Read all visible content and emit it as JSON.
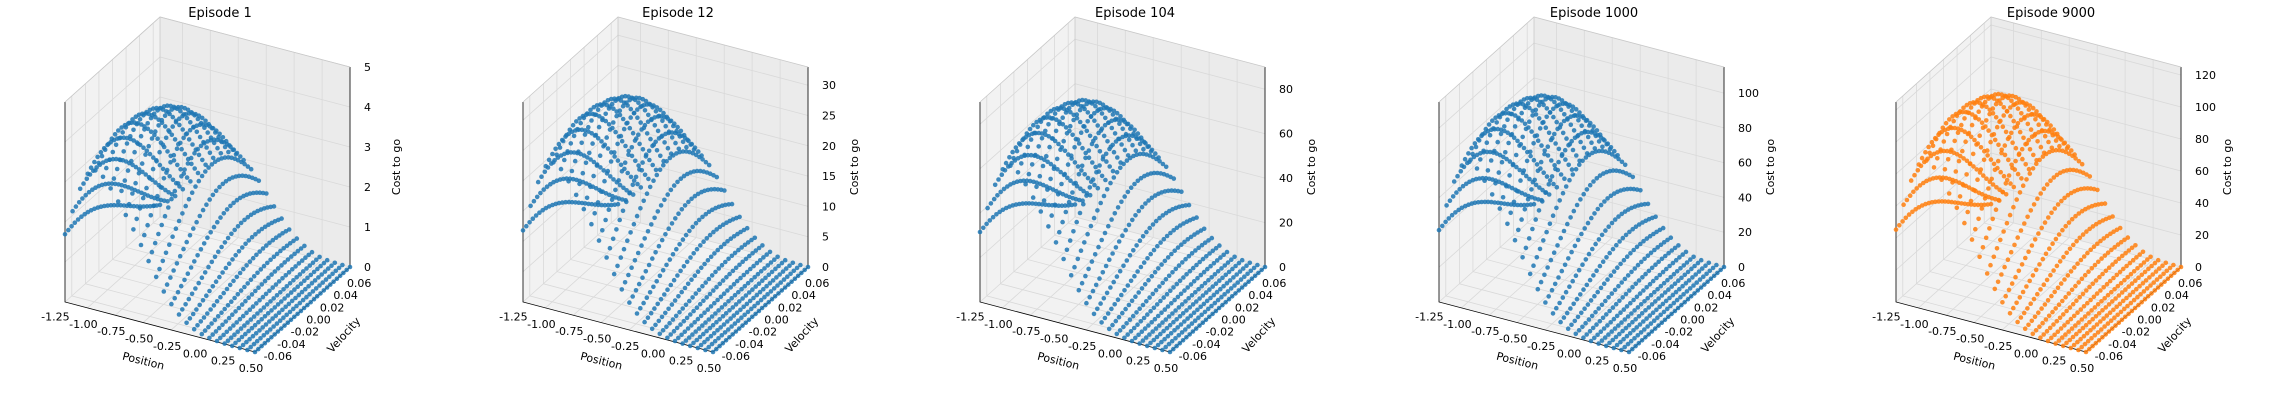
{
  "figure": {
    "background": "#ffffff",
    "pane_color": "#f2f2f2",
    "grid_color": "#d9d9d9",
    "axis_color": "#000000"
  },
  "chart_data": [
    {
      "type": "scatter3d",
      "title": "Episode 1",
      "xlabel": "Position",
      "ylabel": "Velocity",
      "zlabel": "Cost to go",
      "xlim": [
        -1.2,
        0.5
      ],
      "ylim": [
        -0.07,
        0.07
      ],
      "zlim": [
        0,
        5
      ],
      "xticks": [
        "-1.25",
        "-1.00",
        "-0.75",
        "-0.50",
        "-0.25",
        "0.00",
        "0.25",
        "0.50"
      ],
      "yticks": [
        "-0.06",
        "-0.04",
        "-0.02",
        "0.00",
        "0.02",
        "0.04",
        "0.06"
      ],
      "zticks": [
        "0",
        "1",
        "2",
        "3",
        "4",
        "5"
      ],
      "zmax_est": 4.3,
      "color": "#1f77b4",
      "grid": true
    },
    {
      "type": "scatter3d",
      "title": "Episode 12",
      "xlabel": "Position",
      "ylabel": "Velocity",
      "zlabel": "Cost to go",
      "xlim": [
        -1.2,
        0.5
      ],
      "ylim": [
        -0.07,
        0.07
      ],
      "zlim": [
        0,
        33
      ],
      "xticks": [
        "-1.25",
        "-1.00",
        "-0.75",
        "-0.50",
        "-0.25",
        "0.00",
        "0.25",
        "0.50"
      ],
      "yticks": [
        "-0.06",
        "-0.04",
        "-0.02",
        "0.00",
        "0.02",
        "0.04",
        "0.06"
      ],
      "zticks": [
        "0",
        "5",
        "10",
        "15",
        "20",
        "25",
        "30"
      ],
      "zmax_est": 30,
      "color": "#1f77b4",
      "grid": true
    },
    {
      "type": "scatter3d",
      "title": "Episode 104",
      "xlabel": "Position",
      "ylabel": "Velocity",
      "zlabel": "Cost to go",
      "xlim": [
        -1.2,
        0.5
      ],
      "ylim": [
        -0.07,
        0.07
      ],
      "zlim": [
        0,
        90
      ],
      "xticks": [
        "-1.25",
        "-1.00",
        "-0.75",
        "-0.50",
        "-0.25",
        "0.00",
        "0.25",
        "0.50"
      ],
      "yticks": [
        "-0.06",
        "-0.04",
        "-0.02",
        "0.00",
        "0.02",
        "0.04",
        "0.06"
      ],
      "zticks": [
        "0",
        "20",
        "40",
        "60",
        "80"
      ],
      "zmax_est": 80,
      "color": "#1f77b4",
      "grid": true
    },
    {
      "type": "scatter3d",
      "title": "Episode 1000",
      "xlabel": "Position",
      "ylabel": "Velocity",
      "zlabel": "Cost to go",
      "xlim": [
        -1.2,
        0.5
      ],
      "ylim": [
        -0.07,
        0.07
      ],
      "zlim": [
        0,
        115
      ],
      "xticks": [
        "-1.25",
        "-1.00",
        "-0.75",
        "-0.50",
        "-0.25",
        "0.00",
        "0.25",
        "0.50"
      ],
      "yticks": [
        "-0.06",
        "-0.04",
        "-0.02",
        "0.00",
        "0.02",
        "0.04",
        "0.06"
      ],
      "zticks": [
        "0",
        "20",
        "40",
        "60",
        "80",
        "100"
      ],
      "zmax_est": 105,
      "color": "#1f77b4",
      "grid": true
    },
    {
      "type": "scatter3d",
      "title": "Episode 9000",
      "xlabel": "Position",
      "ylabel": "Velocity",
      "zlabel": "Cost to go",
      "xlim": [
        -1.2,
        0.5
      ],
      "ylim": [
        -0.07,
        0.07
      ],
      "zlim": [
        0,
        125
      ],
      "xticks": [
        "-1.25",
        "-1.00",
        "-0.75",
        "-0.50",
        "-0.25",
        "0.00",
        "0.25",
        "0.50"
      ],
      "yticks": [
        "-0.06",
        "-0.04",
        "-0.02",
        "0.00",
        "0.02",
        "0.04",
        "0.06"
      ],
      "zticks": [
        "0",
        "20",
        "40",
        "60",
        "80",
        "100",
        "120"
      ],
      "zmax_est": 115,
      "color": "#ff7f0e",
      "grid": true
    }
  ]
}
